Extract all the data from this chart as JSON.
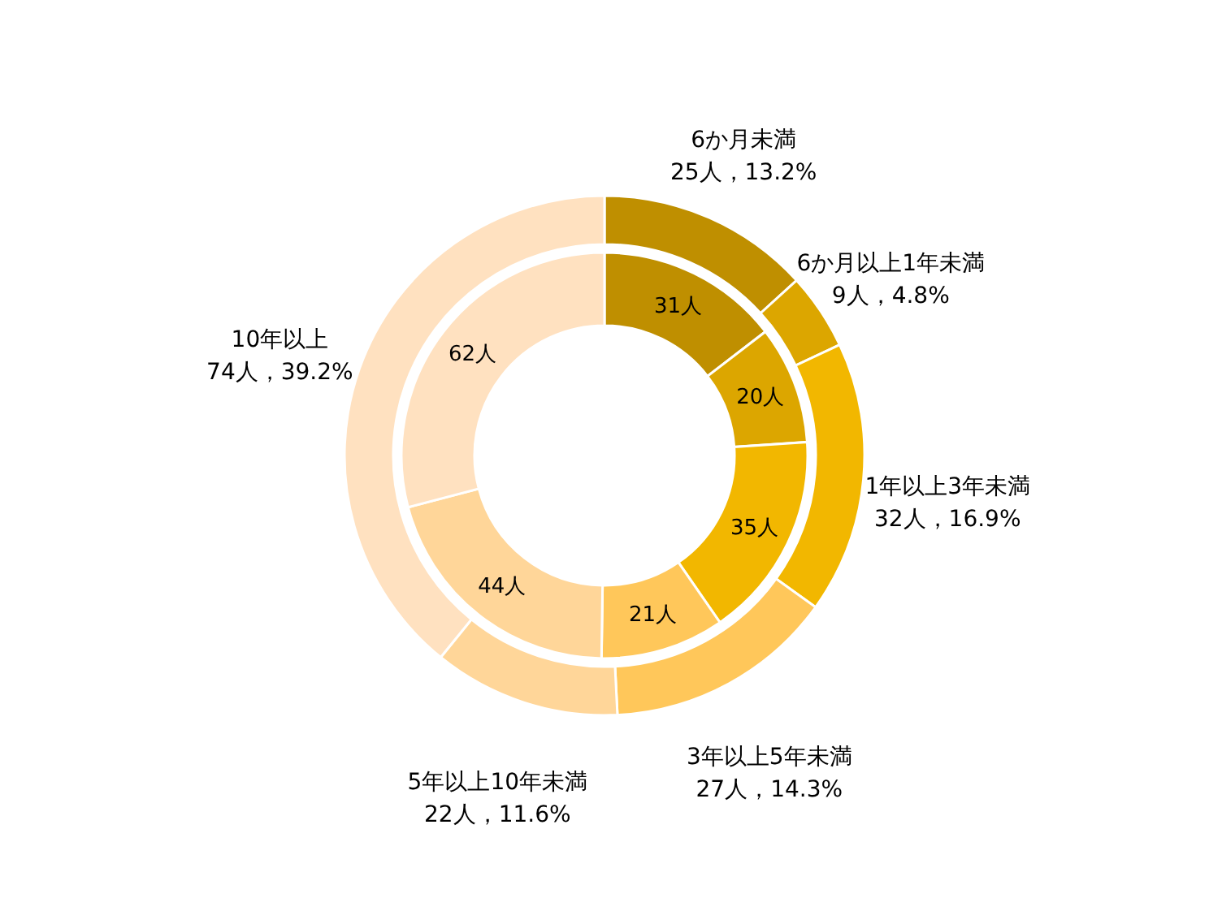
{
  "chart_data": {
    "type": "donut",
    "categories": [
      "6か月未満",
      "6か月以上1年未満",
      "1年以上3年未満",
      "3年以上5年未満",
      "5年以上10年未満",
      "10年以上"
    ],
    "series": [
      {
        "values": [
          25,
          9,
          32,
          27,
          22,
          74
        ],
        "value_labels": [
          "25人，13.2%",
          "9人，4.8%",
          "32人，16.9%",
          "27人，14.3%",
          "22人，11.6%",
          "74人，39.2%"
        ],
        "colors": [
          "#bf8f00",
          "#dca600",
          "#f2b700",
          "#ffc75a",
          "#ffd699",
          "#ffe1c0"
        ]
      },
      {
        "values": [
          31,
          20,
          35,
          21,
          44,
          62
        ],
        "value_labels": [
          "31人",
          "20人",
          "35人",
          "21人",
          "44人",
          "62人"
        ],
        "colors": [
          "#bf8f00",
          "#dca600",
          "#f2b700",
          "#ffc75a",
          "#ffd699",
          "#ffe1c0"
        ]
      }
    ]
  }
}
